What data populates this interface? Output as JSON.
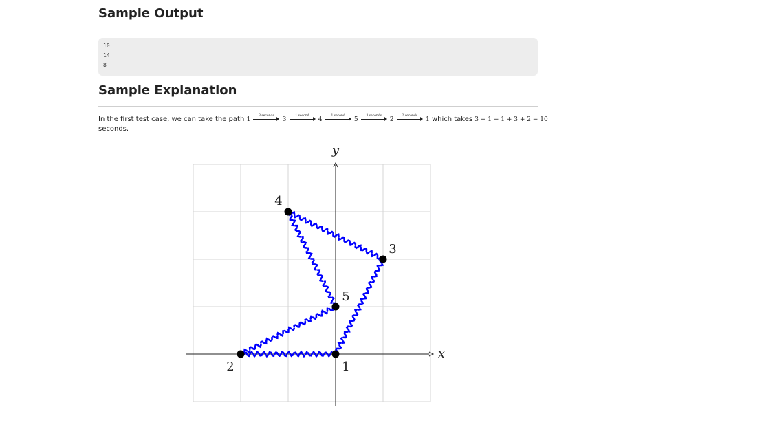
{
  "sample_output": {
    "heading": "Sample Output",
    "lines": [
      "10",
      "14",
      "8"
    ]
  },
  "sample_explanation": {
    "heading": "Sample Explanation",
    "text_before": "In the first test case, we can take the path",
    "path": [
      {
        "node": "1",
        "edge": "3 seconds"
      },
      {
        "node": "3",
        "edge": "1 second"
      },
      {
        "node": "4",
        "edge": "1 second"
      },
      {
        "node": "5",
        "edge": "3 seconds"
      },
      {
        "node": "2",
        "edge": "2 seconds"
      },
      {
        "node": "1",
        "edge": ""
      }
    ],
    "text_after": "which takes",
    "formula": "3 + 1 + 1 + 3 + 2 = 10",
    "text_end": "seconds."
  },
  "graph": {
    "xlabel": "x",
    "ylabel": "y",
    "xlim": [
      -3,
      2
    ],
    "ylim": [
      -1,
      4
    ],
    "grid": true,
    "edge_color": "#0000ff",
    "node_color": "#000000",
    "nodes": [
      {
        "label": "1",
        "x": 0,
        "y": 0
      },
      {
        "label": "2",
        "x": -2,
        "y": 0
      },
      {
        "label": "3",
        "x": 1,
        "y": 2
      },
      {
        "label": "4",
        "x": -1,
        "y": 3
      },
      {
        "label": "5",
        "x": 0,
        "y": 1
      }
    ],
    "edges": [
      [
        "1",
        "3"
      ],
      [
        "3",
        "4"
      ],
      [
        "4",
        "5"
      ],
      [
        "5",
        "2"
      ],
      [
        "2",
        "1"
      ]
    ]
  }
}
